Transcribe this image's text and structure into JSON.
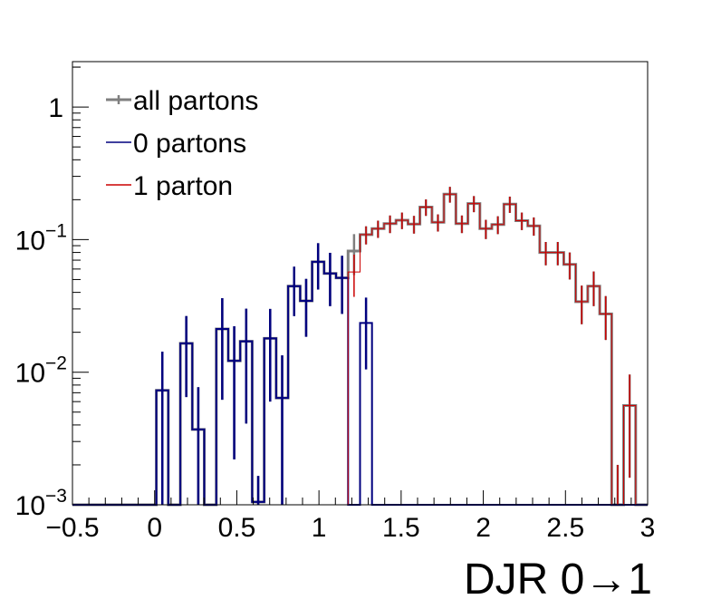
{
  "chart_data": {
    "type": "histogram",
    "xlabel": "DJR 0→1",
    "ylabel": "",
    "xlim": [
      -0.5,
      3.0
    ],
    "ylim": [
      0.001,
      2.2
    ],
    "yscale": "log",
    "bin_width": 0.0714,
    "x_ticks": [
      -0.5,
      0,
      0.5,
      1,
      1.5,
      2,
      2.5,
      3
    ],
    "x_tick_labels": [
      "−0.5",
      "0",
      "0.5",
      "1",
      "1.5",
      "2",
      "2.5",
      "3"
    ],
    "y_ticks": [
      1,
      0.1,
      0.01,
      0.001
    ],
    "y_tick_labels": [
      {
        "base": "1",
        "exp": ""
      },
      {
        "base": "10",
        "exp": "−1"
      },
      {
        "base": "10",
        "exp": "−2"
      },
      {
        "base": "10",
        "exp": "−3"
      }
    ],
    "legend_position": "top-left",
    "grid": false,
    "series": [
      {
        "name": "all partons",
        "color": "#7f7f7f",
        "values": [
          0,
          0,
          0,
          0,
          0,
          0,
          0,
          0.0073,
          0,
          0.0165,
          0.0037,
          0,
          0.0212,
          0.0122,
          0.0171,
          0.00105,
          0.018,
          0.0064,
          0.0445,
          0.0345,
          0.068,
          0.0555,
          0.0515,
          0.082,
          0.109,
          0.121,
          0.132,
          0.14,
          0.131,
          0.176,
          0.135,
          0.22,
          0.132,
          0.187,
          0.121,
          0.13,
          0.185,
          0.139,
          0.127,
          0.08,
          0.08,
          0.065,
          0.034,
          0.0445,
          0.0275,
          0.001,
          0.0056,
          0
        ],
        "errors": [
          0,
          0,
          0,
          0,
          0,
          0,
          0,
          0.007,
          0,
          0.01,
          0.004,
          0,
          0.015,
          0.01,
          0.013,
          0.0006,
          0.012,
          0.007,
          0.018,
          0.016,
          0.026,
          0.024,
          0.024,
          0.028,
          0.017,
          0.018,
          0.02,
          0.02,
          0.02,
          0.025,
          0.02,
          0.03,
          0.02,
          0.026,
          0.02,
          0.02,
          0.026,
          0.021,
          0.02,
          0.016,
          0.016,
          0.015,
          0.011,
          0.013,
          0.01,
          0.001,
          0.004,
          0
        ]
      },
      {
        "name": "0 partons",
        "color": "#00007f",
        "values": [
          0,
          0,
          0,
          0,
          0,
          0,
          0,
          0.0073,
          0,
          0.0165,
          0.0037,
          0,
          0.0212,
          0.0122,
          0.0171,
          0.00105,
          0.018,
          0.0064,
          0.0445,
          0.0345,
          0.068,
          0.0555,
          0.0515,
          0,
          0.0235,
          0,
          0,
          0,
          0,
          0,
          0,
          0,
          0,
          0,
          0,
          0,
          0,
          0,
          0,
          0,
          0,
          0,
          0,
          0,
          0,
          0,
          0,
          0
        ],
        "errors": [
          0,
          0,
          0,
          0,
          0,
          0,
          0,
          0.007,
          0,
          0.01,
          0.004,
          0,
          0.015,
          0.01,
          0.013,
          0.0006,
          0.012,
          0.007,
          0.018,
          0.016,
          0.026,
          0.024,
          0.024,
          0,
          0.013,
          0,
          0,
          0,
          0,
          0,
          0,
          0,
          0,
          0,
          0,
          0,
          0,
          0,
          0,
          0,
          0,
          0,
          0,
          0,
          0,
          0,
          0,
          0
        ]
      },
      {
        "name": "1 parton",
        "color": "#cc0000",
        "values": [
          0,
          0,
          0,
          0,
          0,
          0,
          0,
          0,
          0,
          0,
          0,
          0,
          0,
          0,
          0,
          0,
          0,
          0,
          0,
          0,
          0,
          0,
          0,
          0.057,
          0.109,
          0.121,
          0.132,
          0.14,
          0.131,
          0.176,
          0.135,
          0.22,
          0.132,
          0.187,
          0.121,
          0.13,
          0.185,
          0.139,
          0.127,
          0.08,
          0.08,
          0.065,
          0.034,
          0.0445,
          0.0275,
          0.001,
          0.0056,
          0
        ],
        "errors": [
          0,
          0,
          0,
          0,
          0,
          0,
          0,
          0,
          0,
          0,
          0,
          0,
          0,
          0,
          0,
          0,
          0,
          0,
          0,
          0,
          0,
          0,
          0,
          0.02,
          0.017,
          0.018,
          0.02,
          0.02,
          0.02,
          0.025,
          0.02,
          0.03,
          0.02,
          0.026,
          0.02,
          0.02,
          0.026,
          0.021,
          0.02,
          0.016,
          0.016,
          0.015,
          0.011,
          0.013,
          0.01,
          0.001,
          0.004,
          0
        ]
      }
    ]
  }
}
